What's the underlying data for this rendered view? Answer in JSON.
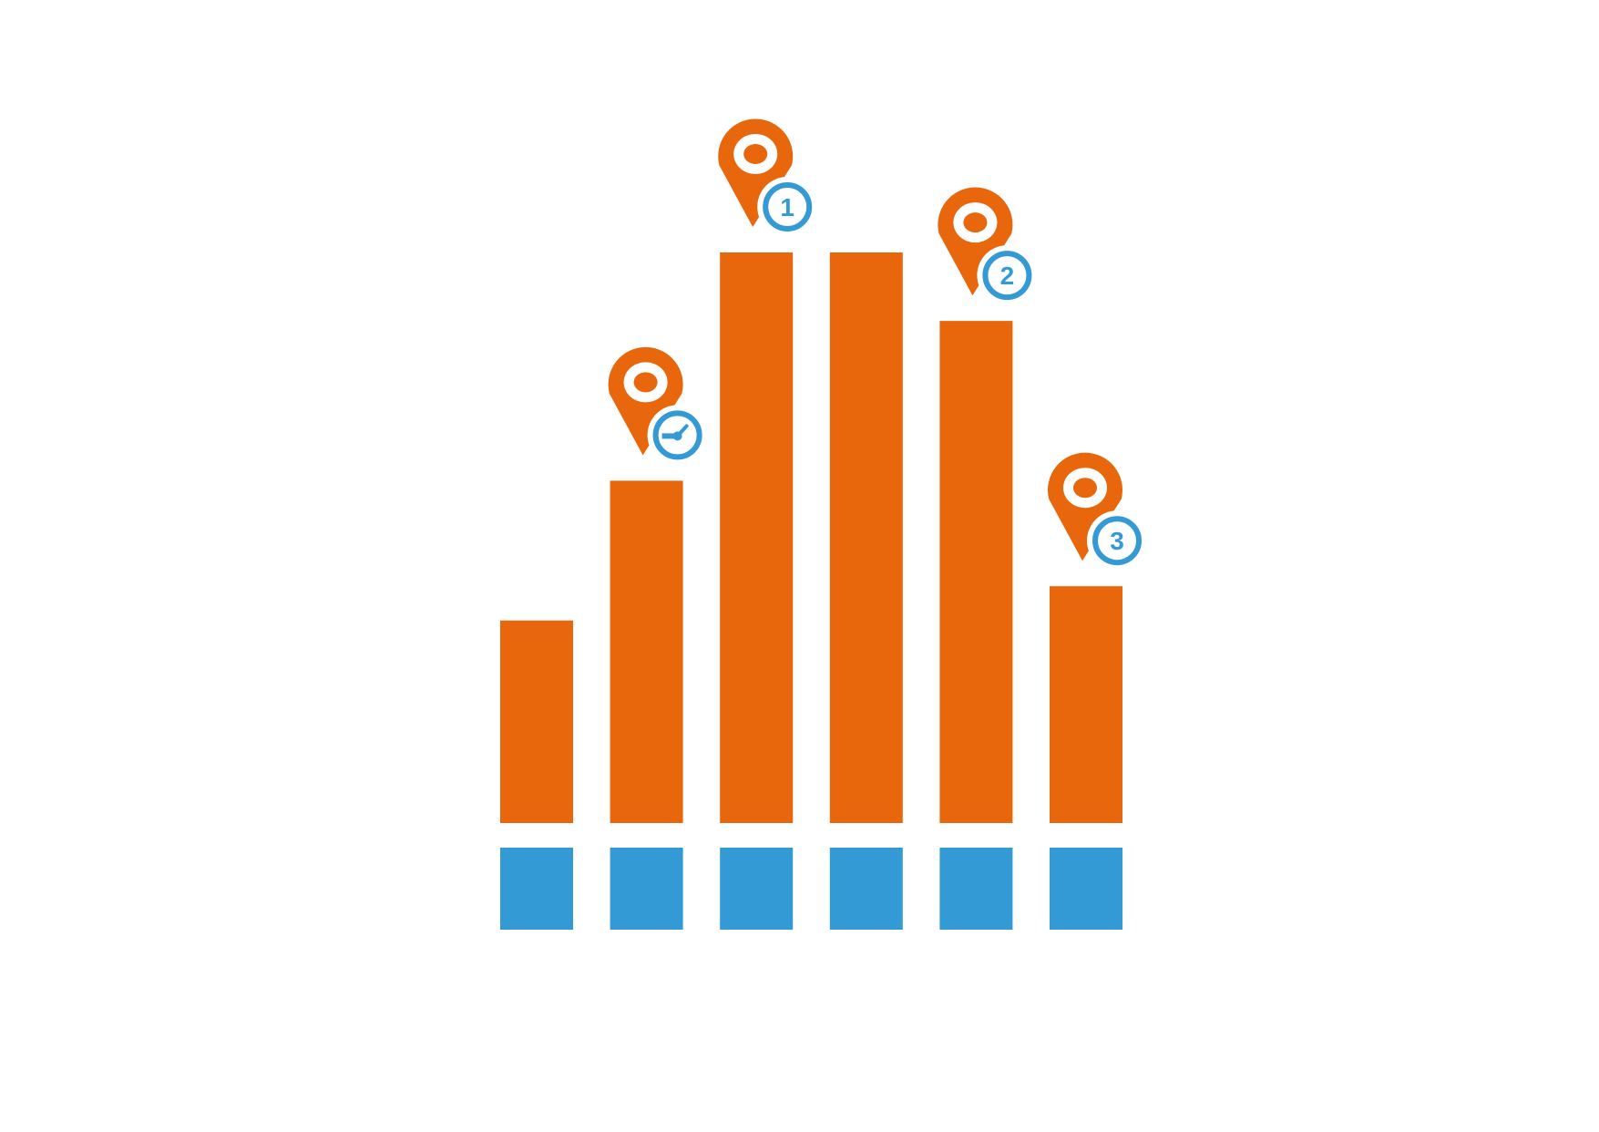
{
  "chart_data": {
    "type": "bar",
    "title": "",
    "xlabel": "",
    "ylabel": "",
    "ylim": [
      0,
      100
    ],
    "grid": false,
    "legend": "none",
    "categories": [
      "",
      "",
      "",
      "",
      "",
      ""
    ],
    "values": [
      35.5,
      60,
      100,
      100,
      88,
      41.5
    ],
    "markers": [
      {
        "bar": 1,
        "label": "",
        "icon": "clock-icon"
      },
      {
        "bar": 2,
        "label": "1",
        "icon": ""
      },
      {
        "bar": 4,
        "label": "2",
        "icon": ""
      },
      {
        "bar": 5,
        "label": "3",
        "icon": ""
      }
    ],
    "colors": {
      "bar": "#e8670c",
      "base": "#349ad6",
      "pin": "#e8670c",
      "badge": "#349ad6"
    }
  }
}
